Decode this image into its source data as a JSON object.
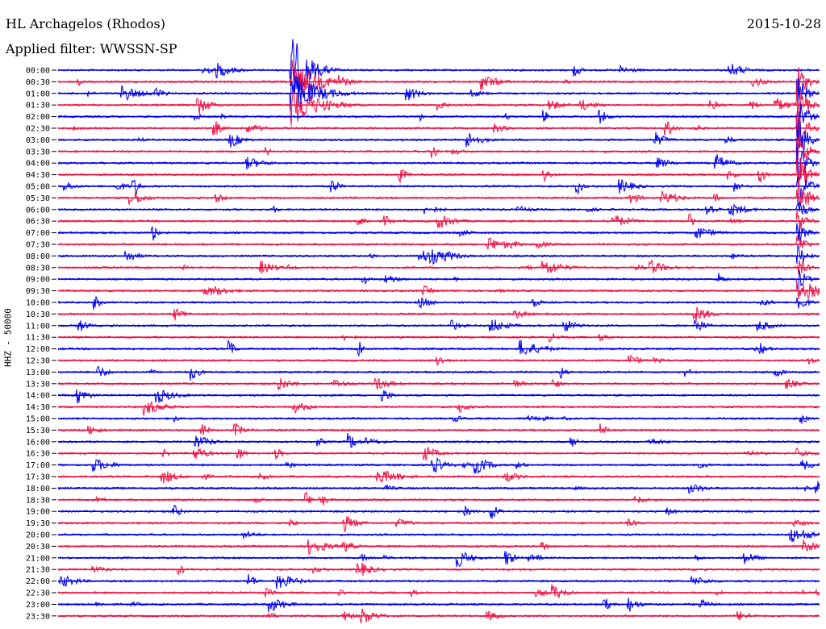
{
  "header": {
    "station": "HL Archagelos (Rhodos)",
    "date": "2015-10-28",
    "filter": "Applied filter: WWSSN-SP"
  },
  "chart_data": {
    "type": "line",
    "title": "HL Archagelos (Rhodos)",
    "ylabel": "HHZ - 50000",
    "xlabel": "",
    "grid": false,
    "tick_labels": [
      "00:00",
      "00:30",
      "01:00",
      "01:30",
      "02:00",
      "02:30",
      "03:00",
      "03:30",
      "04:00",
      "04:30",
      "05:00",
      "05:30",
      "06:00",
      "06:30",
      "07:00",
      "07:30",
      "08:00",
      "08:30",
      "09:00",
      "09:30",
      "10:00",
      "10:30",
      "11:00",
      "11:30",
      "12:00",
      "12:30",
      "13:00",
      "13:30",
      "14:00",
      "14:30",
      "15:00",
      "15:30",
      "16:00",
      "16:30",
      "17:00",
      "17:30",
      "18:00",
      "18:30",
      "19:00",
      "19:30",
      "20:00",
      "20:30",
      "21:00",
      "21:30",
      "22:00",
      "22:30",
      "23:00",
      "23:30"
    ],
    "series_colors": [
      "#0000ee",
      "#ee1144"
    ]
  }
}
